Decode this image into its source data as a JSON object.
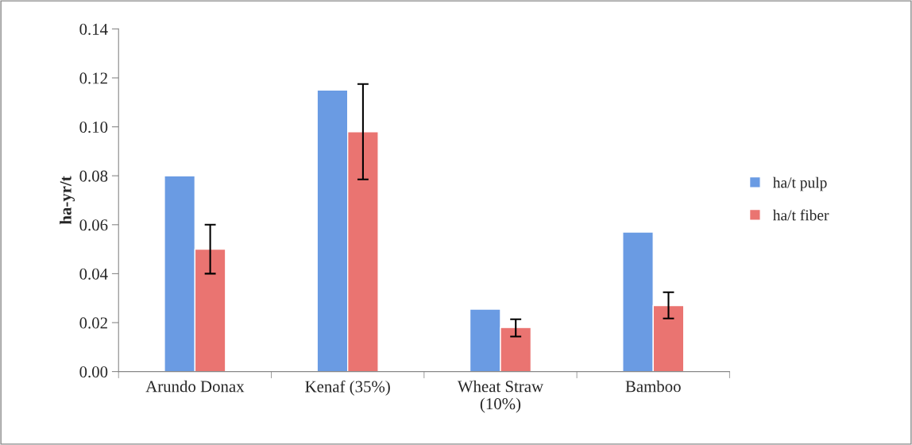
{
  "chart_data": {
    "type": "bar",
    "ylabel": "ha-yr/t",
    "categories": [
      "Arundo Donax",
      "Kenaf (35%)",
      "Wheat Straw\n(10%)",
      "Bamboo"
    ],
    "series": [
      {
        "name": "ha/t pulp",
        "color": "#6a9be3",
        "values": [
          0.08,
          0.115,
          0.0255,
          0.057
        ]
      },
      {
        "name": "ha/t fiber",
        "color": "#ea7471",
        "values": [
          0.05,
          0.098,
          0.018,
          0.027
        ],
        "errors": [
          0.01,
          [
            0.0785,
            0.1175
          ],
          [
            0.0143,
            0.0214
          ],
          [
            0.0217,
            0.0324
          ]
        ]
      }
    ],
    "ylim": [
      0,
      0.14
    ],
    "yticks": [
      {
        "value": 0,
        "label": "0.00"
      },
      0.02,
      0.04,
      0.06,
      0.08,
      {
        "value": 0.1,
        "label": "0.10"
      },
      0.12,
      0.14
    ],
    "grid": false,
    "legend": "right"
  }
}
